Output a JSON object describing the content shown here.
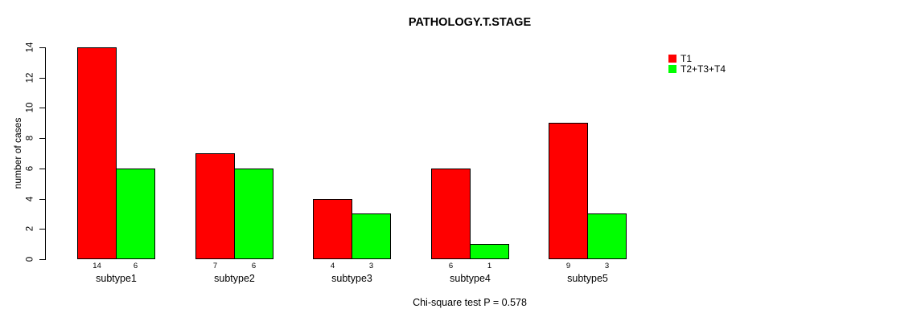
{
  "chart_data": {
    "type": "bar",
    "title": "PATHOLOGY.T.STAGE",
    "ylabel": "number of cases",
    "xlabel": "",
    "footer": "Chi-square test P = 0.578",
    "categories": [
      "subtype1",
      "subtype2",
      "subtype3",
      "subtype4",
      "subtype5"
    ],
    "series": [
      {
        "name": "T1",
        "color": "#ff0000",
        "values": [
          14,
          7,
          4,
          6,
          9
        ]
      },
      {
        "name": "T2+T3+T4",
        "color": "#00ff00",
        "values": [
          6,
          6,
          3,
          1,
          3
        ]
      }
    ],
    "show_bar_values": true,
    "yticks": [
      0,
      2,
      4,
      6,
      8,
      10,
      12,
      14
    ],
    "ylim": [
      0,
      14
    ],
    "grid": false,
    "legend_position": "top-right",
    "bar_border_color": "#000000",
    "axis_color": "#000000",
    "text_color": "#000000",
    "background": "#ffffff"
  }
}
